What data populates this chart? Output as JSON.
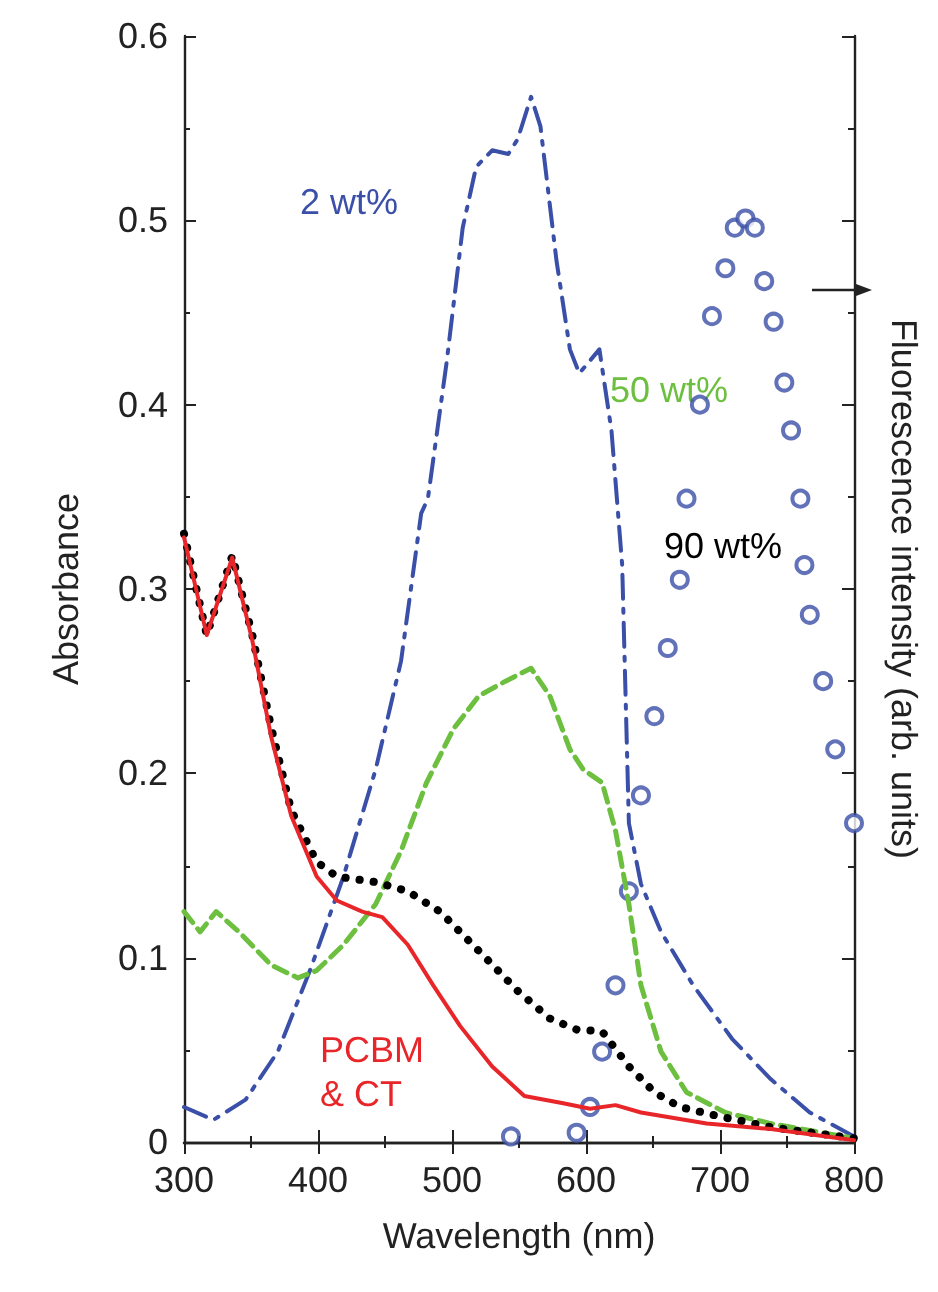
{
  "chart_data": {
    "type": "line",
    "xlabel": "Wavelength (nm)",
    "ylabel": "Absorbance",
    "y2label": "Fluorescence intensity (arb. units)",
    "xlim": [
      300,
      800
    ],
    "xticks": [
      300,
      400,
      500,
      600,
      700,
      800
    ],
    "ylim": [
      0,
      0.6
    ],
    "yticks": [
      0,
      0.1,
      0.2,
      0.3,
      0.4,
      0.5,
      0.6
    ],
    "grid": false,
    "legend": false,
    "marker": "none",
    "series": [
      {
        "name": "2 wt%",
        "color": "#3a4fa8",
        "line_style": "dashdot",
        "x": [
          300,
          322,
          346,
          370,
          394,
          419,
          443,
          462,
          477,
          482,
          496,
          508,
          518,
          530,
          542,
          549,
          559,
          566,
          578,
          588,
          595,
          610,
          619,
          627,
          632,
          641,
          656,
          680,
          709,
          738,
          767,
          800
        ],
        "values": [
          0.019,
          0.012,
          0.023,
          0.049,
          0.093,
          0.144,
          0.202,
          0.261,
          0.341,
          0.349,
          0.423,
          0.496,
          0.529,
          0.538,
          0.536,
          0.544,
          0.567,
          0.551,
          0.478,
          0.43,
          0.417,
          0.43,
          0.386,
          0.313,
          0.173,
          0.14,
          0.114,
          0.085,
          0.056,
          0.034,
          0.016,
          0.003
        ]
      },
      {
        "name": "50 wt%",
        "color": "#6cbf3f",
        "line_style": "dashed",
        "x": [
          300,
          312,
          324,
          341,
          365,
          385,
          399,
          419,
          443,
          462,
          481,
          501,
          520,
          540,
          559,
          573,
          588,
          598,
          612,
          622,
          632,
          641,
          656,
          675,
          704,
          738,
          800
        ],
        "values": [
          0.125,
          0.114,
          0.125,
          0.114,
          0.096,
          0.089,
          0.093,
          0.107,
          0.129,
          0.158,
          0.195,
          0.224,
          0.242,
          0.25,
          0.257,
          0.242,
          0.213,
          0.202,
          0.195,
          0.169,
          0.129,
          0.085,
          0.049,
          0.027,
          0.016,
          0.01,
          0.002
        ]
      },
      {
        "name": "90 wt%",
        "color": "#000000",
        "line_style": "dotted",
        "x": [
          300,
          317,
          336,
          351,
          365,
          380,
          399,
          414,
          443,
          467,
          491,
          506,
          525,
          549,
          573,
          593,
          612,
          632,
          651,
          670,
          699,
          738,
          800
        ],
        "values": [
          0.33,
          0.275,
          0.318,
          0.275,
          0.225,
          0.18,
          0.152,
          0.144,
          0.141,
          0.136,
          0.125,
          0.114,
          0.1,
          0.082,
          0.067,
          0.061,
          0.06,
          0.041,
          0.027,
          0.019,
          0.014,
          0.008,
          0.002
        ]
      },
      {
        "name": "PCBM\n& CT",
        "color": "#e8262a",
        "line_style": "solid",
        "x": [
          300,
          317,
          336,
          351,
          365,
          380,
          399,
          414,
          433,
          448,
          467,
          486,
          506,
          530,
          554,
          583,
          603,
          622,
          641,
          690,
          738,
          800
        ],
        "values": [
          0.328,
          0.275,
          0.317,
          0.272,
          0.22,
          0.177,
          0.144,
          0.131,
          0.125,
          0.122,
          0.107,
          0.085,
          0.063,
          0.041,
          0.025,
          0.021,
          0.018,
          0.02,
          0.016,
          0.01,
          0.007,
          0.001
        ]
      },
      {
        "type": "scatter",
        "marker": "circle",
        "color": "#3a4fa8",
        "x": [
          544,
          593,
          603,
          612,
          622,
          632,
          641,
          651,
          661,
          670,
          675,
          685,
          694,
          704,
          711,
          719,
          726,
          733,
          740,
          748,
          753,
          760,
          763,
          767,
          777,
          786,
          800
        ],
        "values": [
          0.003,
          0.005,
          0.019,
          0.049,
          0.085,
          0.136,
          0.188,
          0.231,
          0.268,
          0.305,
          0.349,
          0.4,
          0.448,
          0.474,
          0.496,
          0.501,
          0.496,
          0.467,
          0.445,
          0.412,
          0.386,
          0.349,
          0.313,
          0.286,
          0.25,
          0.213,
          0.173
        ]
      }
    ]
  }
}
